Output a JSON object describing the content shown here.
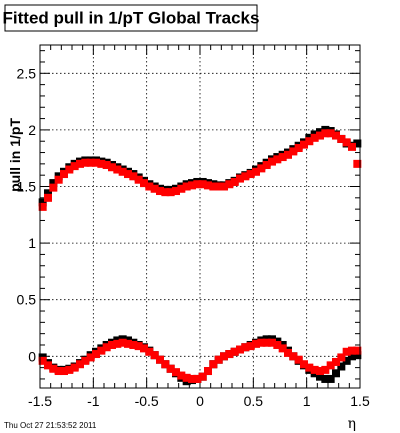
{
  "chart_data": {
    "type": "scatter",
    "title": "Fitted pull in 1/pT  Global Tracks",
    "xlabel": "η",
    "ylabel": "pull in 1/pT",
    "xlim": [
      -1.5,
      1.5
    ],
    "ylim": [
      -0.28,
      2.75
    ],
    "x_ticks": [
      -1.5,
      -1,
      -0.5,
      0,
      0.5,
      1,
      1.5
    ],
    "x_tick_labels": [
      "-1.5",
      "-1",
      "-0.5",
      "0",
      "0.5",
      "1",
      "1.5"
    ],
    "y_ticks": [
      0,
      0.5,
      1,
      1.5,
      2,
      2.5
    ],
    "y_tick_labels": [
      "0",
      "0.5",
      "1",
      "1.5",
      "2",
      "2.5"
    ],
    "grid": true,
    "footer": "Thu Oct 27 21:53:52 2011",
    "series": [
      {
        "color": "#000000",
        "marker": "square",
        "x": [
          -1.475,
          -1.425,
          -1.375,
          -1.325,
          -1.275,
          -1.225,
          -1.175,
          -1.125,
          -1.075,
          -1.025,
          -0.975,
          -0.925,
          -0.875,
          -0.825,
          -0.775,
          -0.725,
          -0.675,
          -0.625,
          -0.575,
          -0.525,
          -0.475,
          -0.425,
          -0.375,
          -0.325,
          -0.275,
          -0.225,
          -0.175,
          -0.125,
          -0.075,
          -0.025,
          0.025,
          0.075,
          0.125,
          0.175,
          0.225,
          0.275,
          0.325,
          0.375,
          0.425,
          0.475,
          0.525,
          0.575,
          0.625,
          0.675,
          0.725,
          0.775,
          0.825,
          0.875,
          0.925,
          0.975,
          1.025,
          1.075,
          1.125,
          1.175,
          1.225,
          1.275,
          1.325,
          1.375,
          1.425,
          1.475,
          -1.475,
          -1.425,
          -1.375,
          -1.325,
          -1.275,
          -1.225,
          -1.175,
          -1.125,
          -1.075,
          -1.025,
          -0.975,
          -0.925,
          -0.875,
          -0.825,
          -0.775,
          -0.725,
          -0.675,
          -0.625,
          -0.575,
          -0.525,
          -0.475,
          -0.425,
          -0.375,
          -0.325,
          -0.275,
          -0.225,
          -0.175,
          -0.125,
          -0.075,
          -0.025,
          0.025,
          0.075,
          0.125,
          0.175,
          0.225,
          0.275,
          0.325,
          0.375,
          0.425,
          0.475,
          0.525,
          0.575,
          0.625,
          0.675,
          0.725,
          0.775,
          0.825,
          0.875,
          0.925,
          0.975,
          1.025,
          1.075,
          1.125,
          1.175,
          1.225,
          1.275,
          1.325,
          1.375,
          1.425,
          1.475
        ],
        "y": [
          1.36,
          1.44,
          1.53,
          1.59,
          1.63,
          1.67,
          1.7,
          1.72,
          1.73,
          1.73,
          1.73,
          1.72,
          1.71,
          1.69,
          1.67,
          1.65,
          1.63,
          1.61,
          1.58,
          1.55,
          1.52,
          1.5,
          1.48,
          1.47,
          1.47,
          1.48,
          1.5,
          1.52,
          1.53,
          1.54,
          1.54,
          1.53,
          1.52,
          1.51,
          1.51,
          1.53,
          1.55,
          1.58,
          1.6,
          1.62,
          1.65,
          1.68,
          1.71,
          1.74,
          1.76,
          1.78,
          1.8,
          1.83,
          1.86,
          1.89,
          1.93,
          1.96,
          1.98,
          2.0,
          1.99,
          1.96,
          1.92,
          1.88,
          1.86,
          1.88,
          -0.01,
          -0.06,
          -0.1,
          -0.12,
          -0.12,
          -0.11,
          -0.09,
          -0.06,
          -0.03,
          0.01,
          0.04,
          0.07,
          0.1,
          0.12,
          0.14,
          0.15,
          0.14,
          0.12,
          0.1,
          0.08,
          0.05,
          0.01,
          -0.03,
          -0.07,
          -0.11,
          -0.15,
          -0.19,
          -0.22,
          -0.21,
          -0.2,
          -0.18,
          -0.13,
          -0.07,
          -0.03,
          0.0,
          0.02,
          0.04,
          0.06,
          0.08,
          0.1,
          0.12,
          0.14,
          0.15,
          0.15,
          0.13,
          0.1,
          0.05,
          0.0,
          -0.04,
          -0.08,
          -0.12,
          -0.15,
          -0.18,
          -0.2,
          -0.2,
          -0.15,
          -0.09,
          -0.04,
          0.0,
          0.01
        ]
      },
      {
        "color": "#ff0000",
        "marker": "square",
        "x": [
          -1.475,
          -1.425,
          -1.375,
          -1.325,
          -1.275,
          -1.225,
          -1.175,
          -1.125,
          -1.075,
          -1.025,
          -0.975,
          -0.925,
          -0.875,
          -0.825,
          -0.775,
          -0.725,
          -0.675,
          -0.625,
          -0.575,
          -0.525,
          -0.475,
          -0.425,
          -0.375,
          -0.325,
          -0.275,
          -0.225,
          -0.175,
          -0.125,
          -0.075,
          -0.025,
          0.025,
          0.075,
          0.125,
          0.175,
          0.225,
          0.275,
          0.325,
          0.375,
          0.425,
          0.475,
          0.525,
          0.575,
          0.625,
          0.675,
          0.725,
          0.775,
          0.825,
          0.875,
          0.925,
          0.975,
          1.025,
          1.075,
          1.125,
          1.175,
          1.225,
          1.275,
          1.325,
          1.375,
          1.425,
          1.475,
          -1.475,
          -1.425,
          -1.375,
          -1.325,
          -1.275,
          -1.225,
          -1.175,
          -1.125,
          -1.075,
          -1.025,
          -0.975,
          -0.925,
          -0.875,
          -0.825,
          -0.775,
          -0.725,
          -0.675,
          -0.625,
          -0.575,
          -0.525,
          -0.475,
          -0.425,
          -0.375,
          -0.325,
          -0.275,
          -0.225,
          -0.175,
          -0.125,
          -0.075,
          -0.025,
          0.025,
          0.075,
          0.125,
          0.175,
          0.225,
          0.275,
          0.325,
          0.375,
          0.425,
          0.475,
          0.525,
          0.575,
          0.625,
          0.675,
          0.725,
          0.775,
          0.825,
          0.875,
          0.925,
          0.975,
          1.025,
          1.075,
          1.125,
          1.175,
          1.225,
          1.275,
          1.325,
          1.375,
          1.425,
          1.475
        ],
        "y": [
          1.32,
          1.4,
          1.49,
          1.56,
          1.61,
          1.65,
          1.68,
          1.7,
          1.71,
          1.71,
          1.71,
          1.7,
          1.69,
          1.67,
          1.65,
          1.63,
          1.61,
          1.59,
          1.56,
          1.53,
          1.5,
          1.48,
          1.46,
          1.45,
          1.45,
          1.46,
          1.48,
          1.5,
          1.51,
          1.52,
          1.52,
          1.51,
          1.5,
          1.5,
          1.5,
          1.52,
          1.54,
          1.57,
          1.59,
          1.61,
          1.63,
          1.66,
          1.69,
          1.72,
          1.74,
          1.76,
          1.78,
          1.81,
          1.84,
          1.87,
          1.9,
          1.93,
          1.95,
          1.97,
          1.97,
          1.95,
          1.92,
          1.89,
          1.85,
          1.7,
          -0.04,
          -0.08,
          -0.11,
          -0.13,
          -0.13,
          -0.12,
          -0.1,
          -0.07,
          -0.04,
          -0.01,
          0.02,
          0.05,
          0.08,
          0.1,
          0.11,
          0.12,
          0.11,
          0.1,
          0.09,
          0.07,
          0.04,
          0.01,
          -0.03,
          -0.07,
          -0.11,
          -0.14,
          -0.17,
          -0.19,
          -0.2,
          -0.2,
          -0.18,
          -0.13,
          -0.07,
          -0.03,
          0.0,
          0.02,
          0.04,
          0.06,
          0.08,
          0.09,
          0.11,
          0.12,
          0.12,
          0.12,
          0.1,
          0.07,
          0.03,
          0.0,
          -0.03,
          -0.07,
          -0.1,
          -0.12,
          -0.13,
          -0.12,
          -0.08,
          -0.05,
          -0.01,
          0.04,
          0.05,
          0.05
        ]
      }
    ]
  }
}
